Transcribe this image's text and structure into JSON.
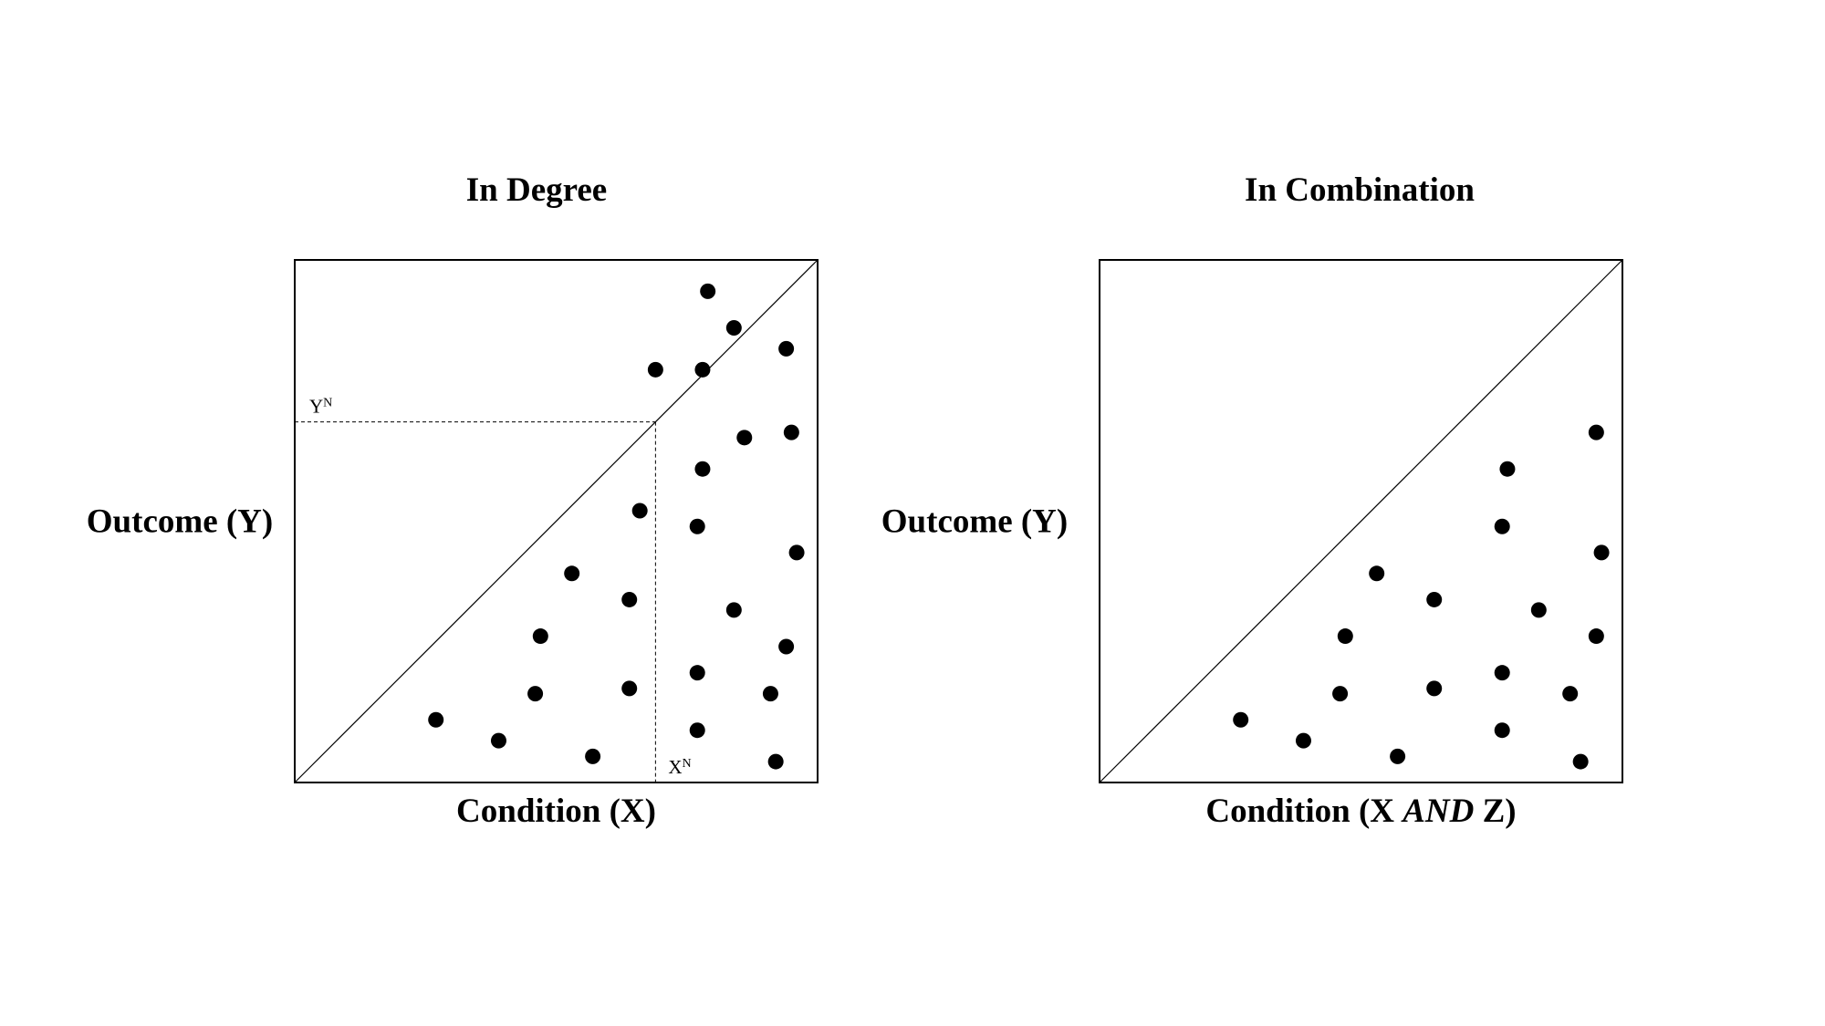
{
  "chart_data": [
    {
      "type": "scatter",
      "title": "In Degree",
      "xlabel": "Condition (X)",
      "ylabel": "Outcome (Y)",
      "xlim": [
        0,
        1
      ],
      "ylim": [
        0,
        1
      ],
      "grid": false,
      "diagonal": true,
      "reference_lines": [
        {
          "axis": "y",
          "value": 0.69,
          "label": "Y",
          "label_sup": "N"
        },
        {
          "axis": "x",
          "value": 0.69,
          "label": "X",
          "label_sup": "N"
        }
      ],
      "points": [
        {
          "x": 0.27,
          "y": 0.12
        },
        {
          "x": 0.39,
          "y": 0.08
        },
        {
          "x": 0.46,
          "y": 0.17
        },
        {
          "x": 0.47,
          "y": 0.28
        },
        {
          "x": 0.53,
          "y": 0.4
        },
        {
          "x": 0.57,
          "y": 0.05
        },
        {
          "x": 0.64,
          "y": 0.18
        },
        {
          "x": 0.64,
          "y": 0.35
        },
        {
          "x": 0.66,
          "y": 0.52
        },
        {
          "x": 0.69,
          "y": 0.79
        },
        {
          "x": 0.77,
          "y": 0.1
        },
        {
          "x": 0.77,
          "y": 0.21
        },
        {
          "x": 0.77,
          "y": 0.49
        },
        {
          "x": 0.78,
          "y": 0.6
        },
        {
          "x": 0.78,
          "y": 0.79
        },
        {
          "x": 0.79,
          "y": 0.94
        },
        {
          "x": 0.84,
          "y": 0.33
        },
        {
          "x": 0.84,
          "y": 0.87
        },
        {
          "x": 0.86,
          "y": 0.66
        },
        {
          "x": 0.91,
          "y": 0.17
        },
        {
          "x": 0.92,
          "y": 0.04
        },
        {
          "x": 0.94,
          "y": 0.26
        },
        {
          "x": 0.94,
          "y": 0.83
        },
        {
          "x": 0.95,
          "y": 0.67
        },
        {
          "x": 0.96,
          "y": 0.44
        }
      ]
    },
    {
      "type": "scatter",
      "title": "In Combination",
      "xlabel": "Condition (X AND Z)",
      "xlabel_parts": [
        {
          "text": "Condition (X ",
          "italic": false
        },
        {
          "text": "AND",
          "italic": true
        },
        {
          "text": " Z)",
          "italic": false
        }
      ],
      "ylabel": "Outcome (Y)",
      "xlim": [
        0,
        1
      ],
      "ylim": [
        0,
        1
      ],
      "grid": false,
      "diagonal": true,
      "reference_lines": [],
      "points": [
        {
          "x": 0.27,
          "y": 0.12
        },
        {
          "x": 0.39,
          "y": 0.08
        },
        {
          "x": 0.46,
          "y": 0.17
        },
        {
          "x": 0.47,
          "y": 0.28
        },
        {
          "x": 0.53,
          "y": 0.4
        },
        {
          "x": 0.57,
          "y": 0.05
        },
        {
          "x": 0.64,
          "y": 0.18
        },
        {
          "x": 0.64,
          "y": 0.35
        },
        {
          "x": 0.77,
          "y": 0.1
        },
        {
          "x": 0.77,
          "y": 0.21
        },
        {
          "x": 0.77,
          "y": 0.49
        },
        {
          "x": 0.78,
          "y": 0.6
        },
        {
          "x": 0.84,
          "y": 0.33
        },
        {
          "x": 0.9,
          "y": 0.17
        },
        {
          "x": 0.92,
          "y": 0.04
        },
        {
          "x": 0.95,
          "y": 0.28
        },
        {
          "x": 0.95,
          "y": 0.67
        },
        {
          "x": 0.96,
          "y": 0.44
        }
      ]
    }
  ]
}
